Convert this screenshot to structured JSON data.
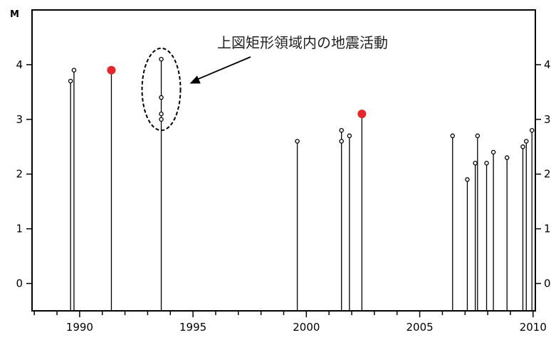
{
  "chart_data": {
    "type": "stem",
    "title": "",
    "ylabel": "M",
    "xlabel": "",
    "xlim": [
      1987.9,
      2010.1
    ],
    "ylim": [
      -0.5,
      5.0
    ],
    "x_ticks": [
      1990,
      1995,
      2000,
      2005,
      2010
    ],
    "x_tick_labels": [
      "1990",
      "1995",
      "2000",
      "2005",
      "2010"
    ],
    "y_ticks": [
      0,
      1,
      2,
      3,
      4
    ],
    "y_tick_labels": [
      "0",
      "1",
      "2",
      "3",
      "4"
    ],
    "colors": {
      "normal": "#000000",
      "highlight": "#e8252a"
    },
    "points": [
      {
        "x": 1989.6,
        "y": 3.7,
        "highlight": false
      },
      {
        "x": 1989.75,
        "y": 3.9,
        "highlight": false
      },
      {
        "x": 1991.4,
        "y": 3.9,
        "highlight": true
      },
      {
        "x": 1993.6,
        "y": 4.1,
        "highlight": false
      },
      {
        "x": 1993.6,
        "y": 3.4,
        "highlight": false
      },
      {
        "x": 1993.6,
        "y": 3.1,
        "highlight": false
      },
      {
        "x": 1993.6,
        "y": 3.0,
        "highlight": false
      },
      {
        "x": 1999.6,
        "y": 2.6,
        "highlight": false
      },
      {
        "x": 2001.55,
        "y": 2.8,
        "highlight": false
      },
      {
        "x": 2001.55,
        "y": 2.6,
        "highlight": false
      },
      {
        "x": 2001.9,
        "y": 2.7,
        "highlight": false
      },
      {
        "x": 2002.45,
        "y": 3.1,
        "highlight": true
      },
      {
        "x": 2006.45,
        "y": 2.7,
        "highlight": false
      },
      {
        "x": 2007.1,
        "y": 1.9,
        "highlight": false
      },
      {
        "x": 2007.45,
        "y": 2.2,
        "highlight": false
      },
      {
        "x": 2007.55,
        "y": 2.7,
        "highlight": false
      },
      {
        "x": 2007.95,
        "y": 2.2,
        "highlight": false
      },
      {
        "x": 2008.25,
        "y": 2.4,
        "highlight": false
      },
      {
        "x": 2008.85,
        "y": 2.3,
        "highlight": false
      },
      {
        "x": 2009.55,
        "y": 2.5,
        "highlight": false
      },
      {
        "x": 2009.7,
        "y": 2.6,
        "highlight": false
      },
      {
        "x": 2009.95,
        "y": 2.8,
        "highlight": false
      }
    ],
    "annotation": {
      "text": "上図矩形領域内の地震活動",
      "target_x": 1993.6,
      "target_y_range": [
        2.8,
        4.3
      ]
    }
  }
}
